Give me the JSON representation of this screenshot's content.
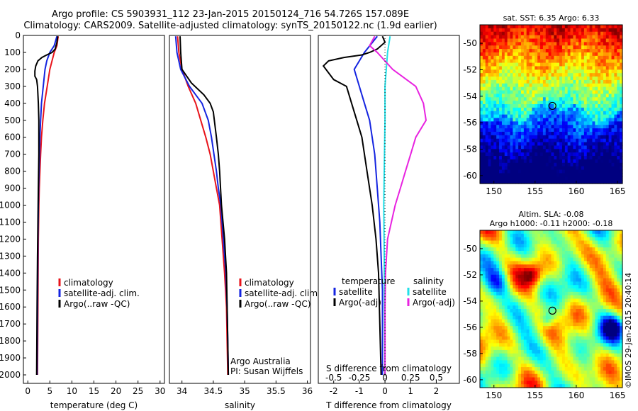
{
  "header": {
    "title_line1": "Argo profile: CS 5903931_112 23-Jan-2015 20150124_716 54.726S 157.089E",
    "title_line2": "Climatology: CARS2009. Satellite-adjusted climatology: synTS_20150122.nc (1.9d earlier)"
  },
  "colors": {
    "climatology": "#e8141b",
    "satellite": "#1424e0",
    "argo": "#000000",
    "salinity_sat": "#22e0e8",
    "salinity_argo": "#e823e0"
  },
  "chart_data": [
    {
      "id": "temperature",
      "type": "line",
      "xlabel": "temperature (deg C)",
      "ylabel": "",
      "xlim": [
        -1,
        31
      ],
      "ylim": [
        2050,
        0
      ],
      "xticks": [
        0,
        5,
        10,
        15,
        20,
        25,
        30
      ],
      "yticks": [
        0,
        100,
        200,
        300,
        400,
        500,
        600,
        700,
        800,
        900,
        1000,
        1100,
        1200,
        1300,
        1400,
        1500,
        1600,
        1700,
        1800,
        1900,
        2000
      ],
      "legend": [
        "climatology",
        "satellite-adj. clim.",
        "Argo(..raw -QC)"
      ],
      "series": [
        {
          "name": "climatology",
          "color": "#e8141b",
          "points": [
            [
              6.9,
              5
            ],
            [
              6.6,
              60
            ],
            [
              6.0,
              100
            ],
            [
              5.5,
              150
            ],
            [
              5.0,
              200
            ],
            [
              4.4,
              300
            ],
            [
              3.8,
              400
            ],
            [
              3.4,
              500
            ],
            [
              3.1,
              600
            ],
            [
              2.9,
              700
            ],
            [
              2.75,
              800
            ],
            [
              2.6,
              900
            ],
            [
              2.5,
              1000
            ],
            [
              2.4,
              1200
            ],
            [
              2.35,
              1400
            ],
            [
              2.3,
              1600
            ],
            [
              2.25,
              1800
            ],
            [
              2.2,
              2000
            ]
          ]
        },
        {
          "name": "satellite-adj. clim.",
          "color": "#1424e0",
          "points": [
            [
              6.6,
              5
            ],
            [
              6.0,
              60
            ],
            [
              5.0,
              100
            ],
            [
              4.3,
              150
            ],
            [
              3.9,
              200
            ],
            [
              3.5,
              300
            ],
            [
              3.1,
              400
            ],
            [
              2.9,
              500
            ],
            [
              2.75,
              600
            ],
            [
              2.65,
              700
            ],
            [
              2.55,
              800
            ],
            [
              2.45,
              900
            ],
            [
              2.4,
              1000
            ],
            [
              2.3,
              1200
            ],
            [
              2.25,
              1400
            ],
            [
              2.2,
              1600
            ],
            [
              2.15,
              1800
            ],
            [
              2.1,
              2000
            ]
          ]
        },
        {
          "name": "Argo(..raw -QC)",
          "color": "#000000",
          "points": [
            [
              6.8,
              5
            ],
            [
              6.6,
              40
            ],
            [
              6.2,
              80
            ],
            [
              5.5,
              100
            ],
            [
              4.3,
              115
            ],
            [
              3.2,
              130
            ],
            [
              2.3,
              150
            ],
            [
              1.8,
              180
            ],
            [
              1.6,
              210
            ],
            [
              1.6,
              240
            ],
            [
              2.0,
              260
            ],
            [
              2.2,
              300
            ],
            [
              2.4,
              400
            ],
            [
              2.5,
              500
            ],
            [
              2.5,
              700
            ],
            [
              2.4,
              900
            ],
            [
              2.3,
              1100
            ],
            [
              2.2,
              1300
            ],
            [
              2.1,
              1600
            ],
            [
              2.05,
              1800
            ],
            [
              2.0,
              2000
            ]
          ]
        }
      ]
    },
    {
      "id": "salinity",
      "type": "line",
      "xlabel": "salinity",
      "ylabel": "",
      "xlim": [
        33.8,
        36.05
      ],
      "ylim": [
        2050,
        0
      ],
      "xticks": [
        34,
        34.5,
        35,
        35.5,
        36
      ],
      "xticklabels": [
        "34",
        "34.5",
        "35",
        "35.5",
        "36"
      ],
      "legend": [
        "climatology",
        "satellite-adj. clim.",
        "Argo(..raw -QC)"
      ],
      "annotation": [
        "Argo Australia",
        "PI: Susan Wijffels"
      ],
      "series": [
        {
          "name": "climatology",
          "color": "#e8141b",
          "points": [
            [
              33.93,
              5
            ],
            [
              33.95,
              100
            ],
            [
              34.0,
              200
            ],
            [
              34.1,
              300
            ],
            [
              34.22,
              400
            ],
            [
              34.3,
              500
            ],
            [
              34.38,
              600
            ],
            [
              34.45,
              700
            ],
            [
              34.5,
              800
            ],
            [
              34.55,
              900
            ],
            [
              34.6,
              1000
            ],
            [
              34.64,
              1200
            ],
            [
              34.68,
              1400
            ],
            [
              34.71,
              1600
            ],
            [
              34.72,
              1800
            ],
            [
              34.73,
              2000
            ]
          ]
        },
        {
          "name": "satellite-adj. clim.",
          "color": "#1424e0",
          "points": [
            [
              33.9,
              5
            ],
            [
              33.92,
              100
            ],
            [
              33.98,
              200
            ],
            [
              34.12,
              300
            ],
            [
              34.32,
              400
            ],
            [
              34.42,
              500
            ],
            [
              34.47,
              600
            ],
            [
              34.51,
              700
            ],
            [
              34.55,
              800
            ],
            [
              34.58,
              900
            ],
            [
              34.62,
              1000
            ],
            [
              34.66,
              1200
            ],
            [
              34.7,
              1400
            ],
            [
              34.72,
              1600
            ],
            [
              34.73,
              1800
            ],
            [
              34.74,
              2000
            ]
          ]
        },
        {
          "name": "Argo(..raw -QC)",
          "color": "#000000",
          "points": [
            [
              33.97,
              5
            ],
            [
              33.98,
              100
            ],
            [
              34.0,
              200
            ],
            [
              34.15,
              280
            ],
            [
              34.35,
              350
            ],
            [
              34.45,
              400
            ],
            [
              34.5,
              450
            ],
            [
              34.55,
              600
            ],
            [
              34.58,
              700
            ],
            [
              34.6,
              800
            ],
            [
              34.63,
              1000
            ],
            [
              34.68,
              1200
            ],
            [
              34.71,
              1400
            ],
            [
              34.72,
              1600
            ],
            [
              34.73,
              1800
            ],
            [
              34.74,
              2000
            ]
          ]
        }
      ]
    },
    {
      "id": "difference",
      "type": "line",
      "xlabel_bottom": "T difference from climatology",
      "xlabel_top": "S difference from climatology",
      "xlim": [
        -2.6,
        2.9
      ],
      "ylim": [
        2050,
        0
      ],
      "xticks": [
        -2,
        -1,
        0,
        1,
        2
      ],
      "s_ticks": [
        -0.5,
        -0.25,
        0,
        0.25,
        0.5
      ],
      "s_ticklabels": [
        "-0.5",
        "-0.25",
        "0",
        "0.25",
        "0.5"
      ],
      "legend_temperature": [
        "temperature",
        "satellite",
        "Argo(-adj)"
      ],
      "legend_salinity": [
        "salinity",
        "satellite",
        "Argo(-adj)"
      ],
      "series": [
        {
          "name": "satellite",
          "quantity": "temperature",
          "color": "#1424e0",
          "points": [
            [
              -0.3,
              5
            ],
            [
              -0.8,
              100
            ],
            [
              -1.2,
              200
            ],
            [
              -1.0,
              300
            ],
            [
              -0.8,
              400
            ],
            [
              -0.6,
              500
            ],
            [
              -0.4,
              700
            ],
            [
              -0.3,
              900
            ],
            [
              -0.2,
              1100
            ],
            [
              -0.15,
              1300
            ],
            [
              -0.1,
              1500
            ],
            [
              -0.1,
              1700
            ],
            [
              -0.1,
              2000
            ]
          ]
        },
        {
          "name": "Argo(-adj)",
          "quantity": "temperature",
          "color": "#000000",
          "points": [
            [
              -0.1,
              5
            ],
            [
              0.0,
              40
            ],
            [
              -0.3,
              80
            ],
            [
              -0.6,
              100
            ],
            [
              -0.9,
              115
            ],
            [
              -1.6,
              130
            ],
            [
              -2.2,
              150
            ],
            [
              -2.4,
              180
            ],
            [
              -2.0,
              260
            ],
            [
              -1.5,
              300
            ],
            [
              -1.3,
              400
            ],
            [
              -1.1,
              500
            ],
            [
              -0.9,
              600
            ],
            [
              -0.7,
              800
            ],
            [
              -0.5,
              1000
            ],
            [
              -0.35,
              1200
            ],
            [
              -0.25,
              1400
            ],
            [
              -0.2,
              1700
            ],
            [
              -0.15,
              2000
            ]
          ]
        },
        {
          "name": "satellite",
          "quantity": "salinity",
          "color": "#22e0e8",
          "points": [
            [
              0.2,
              5
            ],
            [
              0.1,
              100
            ],
            [
              0.05,
              200
            ],
            [
              0.0,
              300
            ],
            [
              0.0,
              500
            ],
            [
              -0.03,
              800
            ],
            [
              -0.05,
              1000
            ],
            [
              -0.03,
              1300
            ],
            [
              -0.02,
              1600
            ],
            [
              0.0,
              2000
            ]
          ]
        },
        {
          "name": "Argo(-adj)",
          "quantity": "salinity",
          "color": "#e823e0",
          "points": [
            [
              -0.4,
              5
            ],
            [
              -0.6,
              60
            ],
            [
              -0.3,
              100
            ],
            [
              0.3,
              200
            ],
            [
              1.2,
              300
            ],
            [
              1.5,
              400
            ],
            [
              1.6,
              500
            ],
            [
              1.2,
              600
            ],
            [
              1.0,
              700
            ],
            [
              0.8,
              800
            ],
            [
              0.6,
              900
            ],
            [
              0.4,
              1000
            ],
            [
              0.25,
              1100
            ],
            [
              0.1,
              1200
            ],
            [
              0.02,
              1400
            ],
            [
              0.0,
              1600
            ],
            [
              0.0,
              2000
            ]
          ]
        }
      ]
    },
    {
      "id": "sst_map",
      "type": "heatmap",
      "title": "sat. SST: 6.35 Argo: 6.33",
      "xlim": [
        148.3,
        165.6
      ],
      "ylim": [
        -60.6,
        -48.6
      ],
      "xticks": [
        150,
        155,
        160,
        165
      ],
      "yticks": [
        -50,
        -52,
        -54,
        -56,
        -58,
        -60
      ],
      "marker": [
        157.1,
        -54.73
      ]
    },
    {
      "id": "sla_map",
      "type": "heatmap",
      "title": [
        "Altim. SLA: -0.08",
        "Argo h1000: -0.11 h2000: -0.18"
      ],
      "xlim": [
        148.3,
        165.6
      ],
      "ylim": [
        -60.6,
        -48.6
      ],
      "xticks": [
        150,
        155,
        160,
        165
      ],
      "yticks": [
        -50,
        -52,
        -54,
        -56,
        -58,
        -60
      ],
      "marker": [
        157.1,
        -54.73
      ]
    }
  ],
  "credit": "©IMOS 29-Jan-2015 20:40:14"
}
